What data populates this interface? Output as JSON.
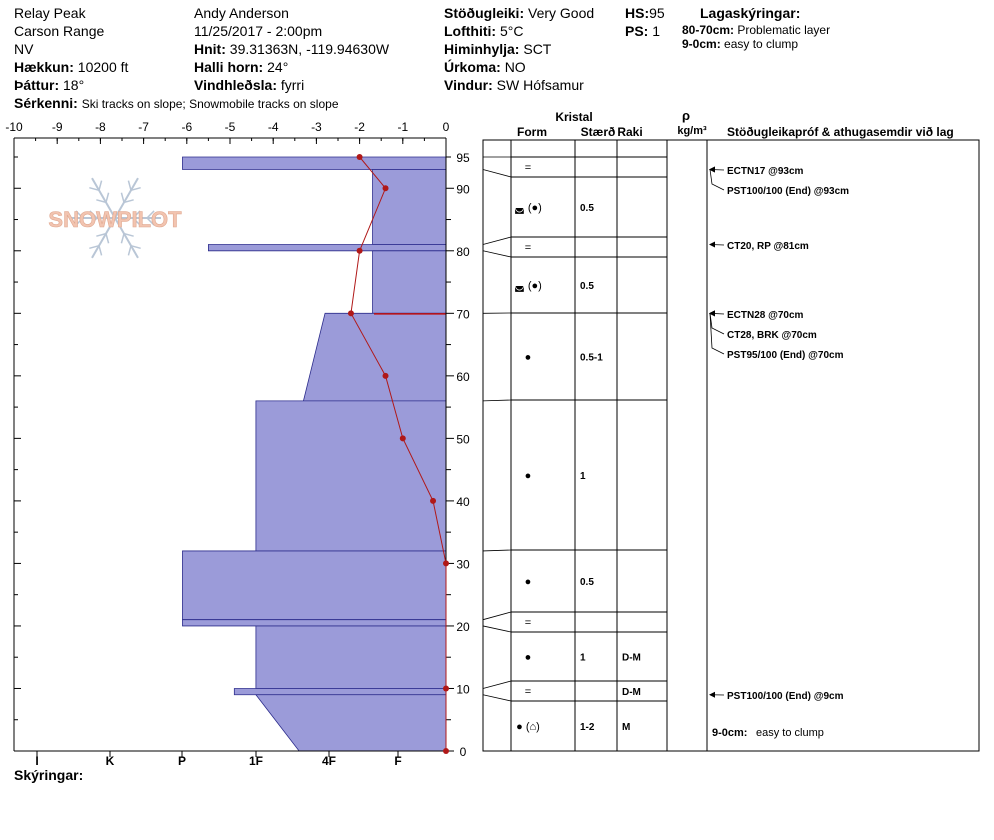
{
  "header": {
    "location": "Relay Peak",
    "range": "Carson Range",
    "aspect": "NV",
    "elevation_label": "Hækkun:",
    "elevation_value": "10200 ft",
    "slope_label": "Þáttur:",
    "slope_value": "18°",
    "features_label": "Sérkenni:",
    "features_value": "Ski tracks on slope; Snowmobile tracks on slope",
    "observer": "Andy Anderson",
    "datetime": "11/25/2017 - 2:00pm",
    "coords_label": "Hnit:",
    "coords_value": "39.31363N, -119.94630W",
    "slope_angle_label": "Halli horn:",
    "slope_angle_value": "24°",
    "wind_loading_label": "Vindhleðsla:",
    "wind_loading_value": "fyrri",
    "stability_label": "Stöðugleiki:",
    "stability_value": "Very Good",
    "air_temp_label": "Lofthiti:",
    "air_temp_value": "5°C",
    "sky_label": "Himinhylja:",
    "sky_value": "SCT",
    "precip_label": "Úrkoma:",
    "precip_value": "NO",
    "wind_label": "Vindur:",
    "wind_value": "SW  Hófsamur",
    "hs_label": "HS:",
    "hs_value": "95",
    "ps_label": "PS:",
    "ps_value": "1",
    "legend_title": "Lagaskýringar:",
    "legend_1_key": "80-70cm:",
    "legend_1_val": "Problematic layer",
    "legend_2_key": "9-0cm:",
    "legend_2_val": "easy to clump",
    "notes_label": "Skýringar:"
  },
  "table_headers": {
    "crystal": "Kristal",
    "form": "Form",
    "size": "Stærð",
    "moisture": "Raki",
    "rho": "ρ",
    "density_unit": "kg/m³",
    "tests": "Stöðugleikapróf & athugasemdir við lag"
  },
  "colors": {
    "hardness_fill": "#9b9bd9",
    "hardness_stroke": "#2c2c8c",
    "temp_line": "#b01818",
    "snowpilot_text": "#f2c4b0",
    "snowflake": "#b9c6d6"
  },
  "watermark": "SNOWPILOT",
  "chart_data": {
    "type": "snow_profile",
    "temp_axis": {
      "ticks": [
        "-10",
        "-9",
        "-8",
        "-7",
        "-6",
        "-5",
        "-4",
        "-3",
        "-2",
        "-1",
        "0"
      ],
      "min": -10,
      "max": 0
    },
    "height_axis": {
      "ticks": [
        "95",
        "90",
        "80",
        "70",
        "60",
        "50",
        "40",
        "30",
        "20",
        "10",
        "0"
      ],
      "min": 0,
      "max": 95
    },
    "hardness_axis": {
      "labels": [
        "I",
        "K",
        "P",
        "1F",
        "4F",
        "F"
      ]
    },
    "hardness_layers": [
      {
        "top": 95,
        "bottom": 93,
        "hardness_left": -6.1,
        "hardness_right_top": -6.1
      },
      {
        "top": 93,
        "bottom": 81,
        "hardness_left": -1.7
      },
      {
        "top": 81,
        "bottom": 80,
        "hardness_left": -5.5
      },
      {
        "top": 80,
        "bottom": 70,
        "hardness_left": -1.7
      },
      {
        "top": 70,
        "bottom": 56,
        "hardness_left_top": -2.8,
        "hardness_left_bottom": -3.3
      },
      {
        "top": 56,
        "bottom": 32,
        "hardness_left": -4.4
      },
      {
        "top": 32,
        "bottom": 21,
        "hardness_left": -6.1
      },
      {
        "top": 21,
        "bottom": 20,
        "hardness_left": -6.1
      },
      {
        "top": 20,
        "bottom": 10,
        "hardness_left": -4.4
      },
      {
        "top": 10,
        "bottom": 9,
        "hardness_left": -4.9
      },
      {
        "top": 9,
        "bottom": 0,
        "hardness_left_top": -4.4,
        "hardness_left_bottom": -3.4
      }
    ],
    "temperature_profile": [
      {
        "height": 95,
        "temp": -2.0
      },
      {
        "height": 90,
        "temp": -1.4
      },
      {
        "height": 80,
        "temp": -2.0
      },
      {
        "height": 70,
        "temp": -2.2
      },
      {
        "height": 60,
        "temp": -1.4
      },
      {
        "height": 50,
        "temp": -1.0
      },
      {
        "height": 40,
        "temp": -0.3
      },
      {
        "height": 30,
        "temp": 0.0
      },
      {
        "height": 10,
        "temp": 0.0
      },
      {
        "height": 0,
        "temp": 0.0
      }
    ],
    "layers_table": [
      {
        "top": 95,
        "bottom": 93,
        "form": "=",
        "size": "",
        "moisture": ""
      },
      {
        "top": 93,
        "bottom": 81,
        "form": "◛ (●)",
        "size": "0.5",
        "moisture": ""
      },
      {
        "top": 81,
        "bottom": 80,
        "form": "=",
        "size": "",
        "moisture": ""
      },
      {
        "top": 80,
        "bottom": 70,
        "form": "◛ (●)",
        "size": "0.5",
        "moisture": ""
      },
      {
        "top": 70,
        "bottom": 56,
        "form": "●",
        "size": "0.5-1",
        "moisture": ""
      },
      {
        "top": 56,
        "bottom": 32,
        "form": "●",
        "size": "1",
        "moisture": ""
      },
      {
        "top": 32,
        "bottom": 21,
        "form": "●",
        "size": "0.5",
        "moisture": ""
      },
      {
        "top": 21,
        "bottom": 20,
        "form": "=",
        "size": "",
        "moisture": ""
      },
      {
        "top": 20,
        "bottom": 10,
        "form": "●",
        "size": "1",
        "moisture": "D-M"
      },
      {
        "top": 10,
        "bottom": 9,
        "form": "=",
        "size": "",
        "moisture": "D-M"
      },
      {
        "top": 9,
        "bottom": 0,
        "form": "● (⌂)",
        "size": "1-2",
        "moisture": "M"
      }
    ],
    "stability_tests": [
      {
        "height": 93,
        "text": "ECTN17 @93cm"
      },
      {
        "height": 93,
        "text": "PST100/100 (End) @93cm"
      },
      {
        "height": 81,
        "text": "CT20, RP @81cm"
      },
      {
        "height": 70,
        "text": "ECTN28 @70cm"
      },
      {
        "height": 70,
        "text": "CT28, BRK @70cm"
      },
      {
        "height": 70,
        "text": "PST95/100 (End) @70cm"
      },
      {
        "height": 9,
        "text": "PST100/100 (End) @9cm"
      }
    ],
    "layer_comment": {
      "text": "9-0cm:",
      "detail": "easy to clump"
    },
    "problematic_layer": {
      "top": 70,
      "bottom": 70
    }
  }
}
